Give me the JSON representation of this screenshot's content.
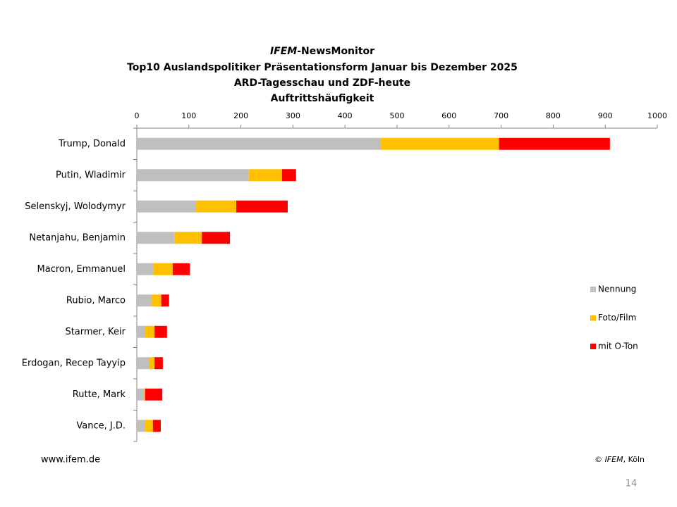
{
  "chart_data": {
    "type": "stacked_bar_horizontal",
    "title_brand": "IFEM",
    "title_brand_rest": "-NewsMonitor",
    "title_lines": [
      "Top10 Auslandspolitiker Präsentationsform Januar bis Dezember 2025",
      "ARD-Tagesschau und ZDF-heute",
      "Auftrittshäufigkeit"
    ],
    "categories": [
      "Trump, Donald",
      "Putin, Wladimir",
      "Selenskyj, Wolodymyr",
      "Netanjahu, Benjamin",
      "Macron, Emmanuel",
      "Rubio, Marco",
      "Starmer, Keir",
      "Erdogan, Recep Tayyip",
      "Rutte, Mark",
      "Vance, J.D."
    ],
    "series": [
      {
        "name": "Nennung",
        "color": "#bfbfbf",
        "values": [
          469,
          215,
          114,
          73,
          31,
          28,
          15,
          23,
          14,
          15
        ]
      },
      {
        "name": "Foto/Film",
        "color": "#ffc000",
        "values": [
          227,
          64,
          77,
          52,
          38,
          19,
          19,
          11,
          2,
          16
        ]
      },
      {
        "name": "mit O-Ton",
        "color": "#ff0000",
        "values": [
          213,
          27,
          99,
          54,
          33,
          15,
          24,
          16,
          33,
          15
        ]
      }
    ],
    "xlim": [
      0,
      1000
    ],
    "xticks": [
      0,
      100,
      200,
      300,
      400,
      500,
      600,
      700,
      800,
      900,
      1000
    ],
    "grid": false,
    "legend": "right"
  },
  "footer_left": "www.ifem.de",
  "footer_right": {
    "symbol": "©",
    "brand": "IFEM",
    "rest": ", Köln"
  },
  "page_number": "14"
}
